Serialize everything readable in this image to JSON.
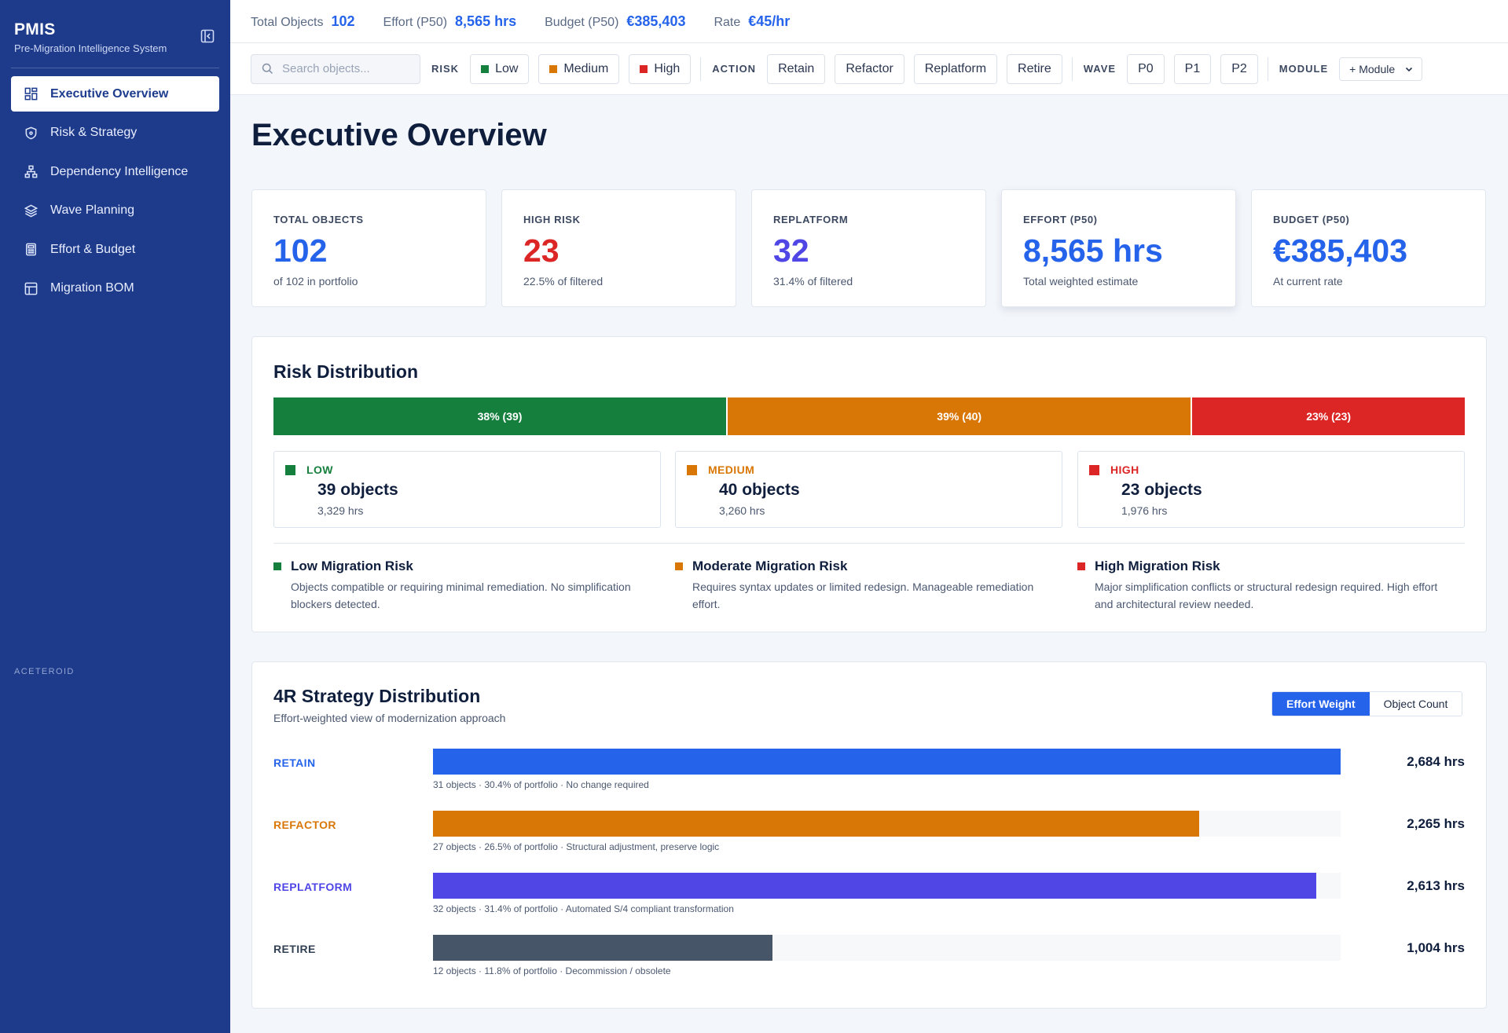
{
  "app": {
    "name": "PMIS",
    "subtitle": "Pre-Migration Intelligence System",
    "footer": "ACETEROID"
  },
  "sidebar": {
    "items": [
      {
        "label": "Executive Overview",
        "icon": "dashboard-icon",
        "active": true
      },
      {
        "label": "Risk & Strategy",
        "icon": "shield-icon",
        "active": false
      },
      {
        "label": "Dependency Intelligence",
        "icon": "network-icon",
        "active": false
      },
      {
        "label": "Wave Planning",
        "icon": "layers-icon",
        "active": false
      },
      {
        "label": "Effort & Budget",
        "icon": "calculator-icon",
        "active": false
      },
      {
        "label": "Migration BOM",
        "icon": "table-icon",
        "active": false
      }
    ]
  },
  "topbar": {
    "total_objects_label": "Total Objects",
    "total_objects_value": "102",
    "effort_label": "Effort (P50)",
    "effort_value": "8,565 hrs",
    "budget_label": "Budget (P50)",
    "budget_value": "€385,403",
    "rate_label": "Rate",
    "rate_value": "€45/hr"
  },
  "filters": {
    "search_placeholder": "Search objects...",
    "risk_label": "RISK",
    "risk": [
      "Low",
      "Medium",
      "High"
    ],
    "action_label": "ACTION",
    "actions": [
      "Retain",
      "Refactor",
      "Replatform",
      "Retire"
    ],
    "wave_label": "WAVE",
    "waves": [
      "P0",
      "P1",
      "P2"
    ],
    "module_label": "MODULE",
    "module_select": "+ Module"
  },
  "page_title": "Executive Overview",
  "kpis": [
    {
      "label": "TOTAL OBJECTS",
      "value": "102",
      "sub": "of 102 in portfolio",
      "color": "#2563eb"
    },
    {
      "label": "HIGH RISK",
      "value": "23",
      "sub": "22.5% of filtered",
      "color": "#dc2626"
    },
    {
      "label": "REPLATFORM",
      "value": "32",
      "sub": "31.4% of filtered",
      "color": "#4f46e5"
    },
    {
      "label": "EFFORT (P50)",
      "value": "8,565 hrs",
      "sub": "Total weighted estimate",
      "color": "#2563eb"
    },
    {
      "label": "BUDGET (P50)",
      "value": "€385,403",
      "sub": "At current rate",
      "color": "#2563eb"
    }
  ],
  "risk_distribution": {
    "title": "Risk Distribution",
    "segments": [
      {
        "label": "38% (39)",
        "share": 38,
        "color": "#15803d"
      },
      {
        "label": "39% (40)",
        "share": 39,
        "color": "#d97706"
      },
      {
        "label": "23% (23)",
        "share": 23,
        "color": "#dc2626"
      }
    ],
    "boxes": [
      {
        "name": "LOW",
        "objects": "39 objects",
        "hrs": "3,329 hrs",
        "color": "#15803d"
      },
      {
        "name": "MEDIUM",
        "objects": "40 objects",
        "hrs": "3,260 hrs",
        "color": "#d97706"
      },
      {
        "name": "HIGH",
        "objects": "23 objects",
        "hrs": "1,976 hrs",
        "color": "#dc2626"
      }
    ],
    "legend": [
      {
        "title": "Low Migration Risk",
        "desc": "Objects compatible or requiring minimal remediation. No simplification blockers detected."
      },
      {
        "title": "Moderate Migration Risk",
        "desc": "Requires syntax updates or limited redesign. Manageable remediation effort."
      },
      {
        "title": "High Migration Risk",
        "desc": "Major simplification conflicts or structural redesign required. High effort and architectural review needed."
      }
    ]
  },
  "strategy": {
    "title": "4R Strategy Distribution",
    "subtitle": "Effort-weighted view of modernization approach",
    "toggle": [
      "Effort Weight",
      "Object Count"
    ],
    "max_hrs": 2684,
    "rows": [
      {
        "name": "RETAIN",
        "hrs_value": 2684,
        "hrs": "2,684 hrs",
        "desc": "31 objects · 30.4% of portfolio · No change required",
        "color": "#2563eb"
      },
      {
        "name": "REFACTOR",
        "hrs_value": 2265,
        "hrs": "2,265 hrs",
        "desc": "27 objects · 26.5% of portfolio · Structural adjustment, preserve logic",
        "color": "#d97706"
      },
      {
        "name": "REPLATFORM",
        "hrs_value": 2613,
        "hrs": "2,613 hrs",
        "desc": "32 objects · 31.4% of portfolio · Automated S/4 compliant transformation",
        "color": "#4f46e5"
      },
      {
        "name": "RETIRE",
        "hrs_value": 1004,
        "hrs": "1,004 hrs",
        "desc": "12 objects · 11.8% of portfolio · Decommission / obsolete",
        "color": "#475569"
      }
    ]
  }
}
